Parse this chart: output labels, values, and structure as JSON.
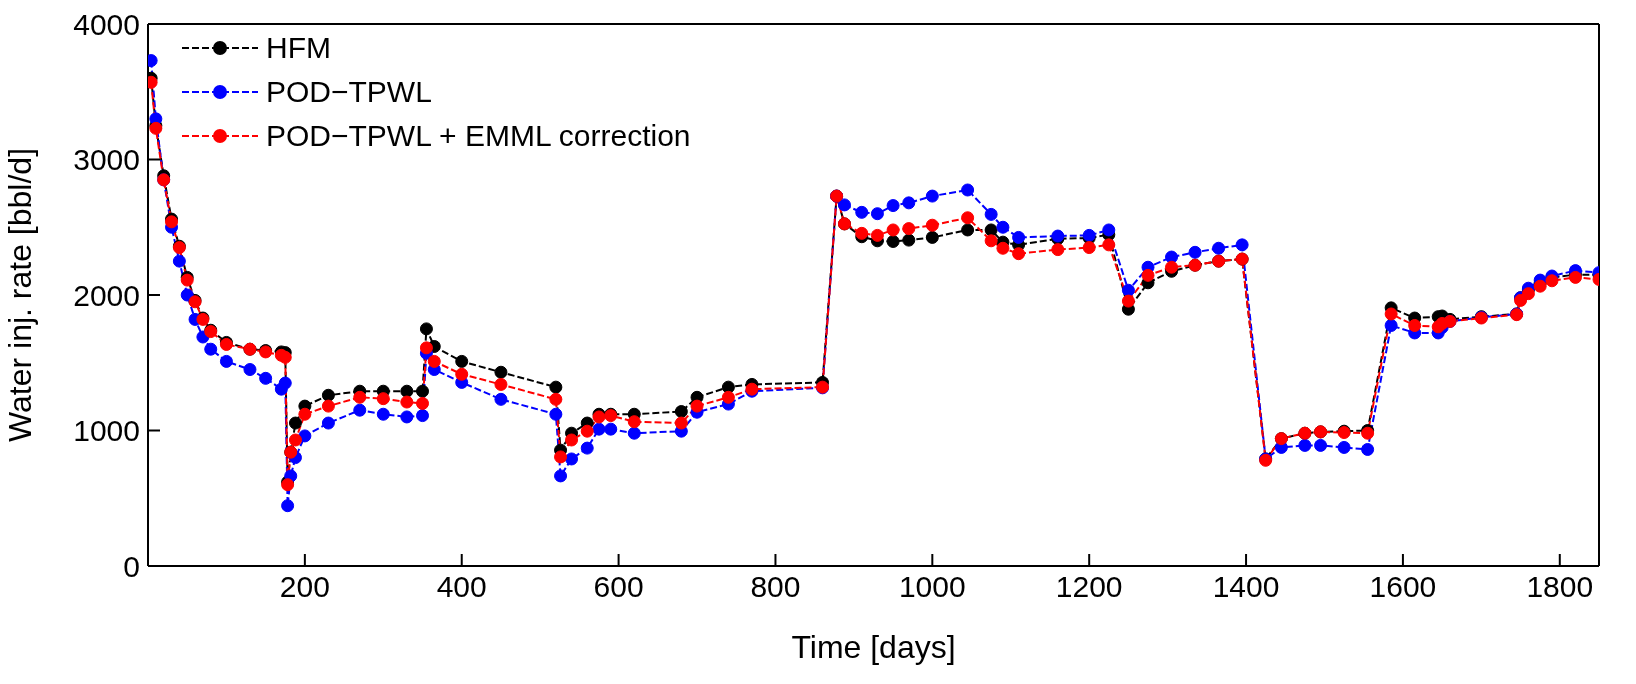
{
  "chart_data": {
    "type": "line",
    "xlabel": "Time [days]",
    "ylabel": "Water inj. rate [bbl/d]",
    "x": [
      4,
      10,
      20,
      30,
      40,
      50,
      60,
      70,
      80,
      100,
      130,
      150,
      170,
      175,
      178,
      182,
      188,
      200,
      230,
      270,
      300,
      330,
      350,
      355,
      365,
      400,
      450,
      520,
      526,
      540,
      560,
      575,
      590,
      620,
      680,
      700,
      740,
      770,
      860,
      878,
      888,
      910,
      930,
      950,
      970,
      1000,
      1045,
      1075,
      1090,
      1110,
      1160,
      1200,
      1225,
      1250,
      1275,
      1305,
      1335,
      1365,
      1395,
      1425,
      1445,
      1475,
      1495,
      1525,
      1555,
      1585,
      1615,
      1645,
      1650,
      1660,
      1700,
      1745,
      1750,
      1760,
      1775,
      1790,
      1820,
      1850
    ],
    "series": [
      {
        "name": "HFM",
        "color": "#000000",
        "values": [
          3600,
          3250,
          2880,
          2560,
          2360,
          2130,
          1960,
          1830,
          1740,
          1650,
          1600,
          1590,
          1580,
          1575,
          620,
          840,
          1055,
          1180,
          1260,
          1290,
          1290,
          1290,
          1290,
          1750,
          1620,
          1510,
          1430,
          1320,
          855,
          980,
          1055,
          1120,
          1120,
          1120,
          1140,
          1245,
          1320,
          1340,
          1355,
          2730,
          2525,
          2430,
          2400,
          2395,
          2405,
          2425,
          2480,
          2480,
          2390,
          2370,
          2415,
          2420,
          2445,
          1895,
          2090,
          2175,
          2220,
          2250,
          2265,
          790,
          940,
          980,
          990,
          995,
          1000,
          1905,
          1830,
          1840,
          1845,
          1820,
          1840,
          1860,
          1980,
          2040,
          2090,
          2130,
          2150,
          2150
        ]
      },
      {
        "name": "POD−TPWL",
        "color": "#0000ff",
        "values": [
          3730,
          3300,
          2850,
          2500,
          2250,
          2000,
          1820,
          1690,
          1600,
          1510,
          1450,
          1385,
          1305,
          1350,
          445,
          665,
          800,
          960,
          1055,
          1150,
          1120,
          1100,
          1110,
          1570,
          1450,
          1355,
          1230,
          1120,
          665,
          790,
          870,
          1010,
          1010,
          980,
          995,
          1135,
          1195,
          1290,
          1315,
          2730,
          2665,
          2610,
          2600,
          2660,
          2680,
          2730,
          2775,
          2595,
          2500,
          2425,
          2435,
          2440,
          2480,
          2035,
          2205,
          2280,
          2315,
          2345,
          2370,
          790,
          875,
          890,
          890,
          875,
          860,
          1775,
          1720,
          1720,
          1760,
          1805,
          1835,
          1860,
          1980,
          2050,
          2110,
          2140,
          2180,
          2165
        ]
      },
      {
        "name": "POD−TPWL + EMML correction",
        "color": "#ff0000",
        "values": [
          3570,
          3230,
          2850,
          2540,
          2350,
          2110,
          1950,
          1820,
          1730,
          1635,
          1600,
          1580,
          1555,
          1540,
          600,
          840,
          930,
          1120,
          1180,
          1245,
          1235,
          1210,
          1200,
          1610,
          1510,
          1415,
          1340,
          1230,
          805,
          930,
          995,
          1100,
          1110,
          1065,
          1055,
          1180,
          1245,
          1305,
          1320,
          2730,
          2525,
          2455,
          2440,
          2480,
          2490,
          2515,
          2570,
          2400,
          2345,
          2305,
          2335,
          2350,
          2370,
          1955,
          2145,
          2205,
          2220,
          2250,
          2265,
          780,
          940,
          980,
          990,
          985,
          980,
          1860,
          1775,
          1765,
          1790,
          1805,
          1830,
          1855,
          1960,
          2010,
          2065,
          2105,
          2130,
          2115
        ]
      }
    ],
    "xlim": [
      0,
      1850
    ],
    "xticks": [
      200,
      400,
      600,
      800,
      1000,
      1200,
      1400,
      1600,
      1800
    ],
    "ylim": [
      0,
      4000
    ],
    "yticks": [
      0,
      1000,
      2000,
      3000,
      4000
    ],
    "grid": false,
    "legend": "top left",
    "marker": "circle",
    "line_style": "dashed"
  }
}
